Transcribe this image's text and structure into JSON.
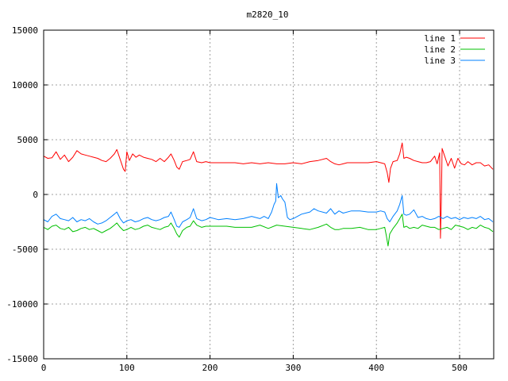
{
  "chart_data": {
    "type": "line",
    "title": "m2820_10",
    "xlabel": "",
    "ylabel": "",
    "xlim": [
      0,
      541
    ],
    "ylim": [
      -15000,
      15000
    ],
    "x_ticks": [
      0,
      100,
      200,
      300,
      400,
      500
    ],
    "y_ticks": [
      -15000,
      -10000,
      -5000,
      0,
      5000,
      10000,
      15000
    ],
    "x_tick_labels": [
      "0",
      "100",
      "200",
      "300",
      "400",
      "500"
    ],
    "y_tick_labels": [
      "-15000",
      "-10000",
      "-5000",
      "0",
      "5000",
      "10000",
      "15000"
    ],
    "grid": true,
    "legend_position": "top-right",
    "series": [
      {
        "name": "line 1",
        "color": "#ff0000",
        "points": [
          [
            0,
            3500
          ],
          [
            5,
            3300
          ],
          [
            10,
            3350
          ],
          [
            15,
            3900
          ],
          [
            20,
            3200
          ],
          [
            25,
            3600
          ],
          [
            30,
            3000
          ],
          [
            35,
            3400
          ],
          [
            40,
            4000
          ],
          [
            45,
            3700
          ],
          [
            50,
            3600
          ],
          [
            55,
            3500
          ],
          [
            60,
            3400
          ],
          [
            65,
            3300
          ],
          [
            70,
            3100
          ],
          [
            75,
            3000
          ],
          [
            80,
            3300
          ],
          [
            85,
            3700
          ],
          [
            88,
            4100
          ],
          [
            92,
            3200
          ],
          [
            96,
            2300
          ],
          [
            98,
            2100
          ],
          [
            100,
            3900
          ],
          [
            103,
            3100
          ],
          [
            107,
            3700
          ],
          [
            111,
            3400
          ],
          [
            115,
            3600
          ],
          [
            120,
            3400
          ],
          [
            125,
            3300
          ],
          [
            130,
            3200
          ],
          [
            135,
            3000
          ],
          [
            140,
            3300
          ],
          [
            145,
            3000
          ],
          [
            150,
            3400
          ],
          [
            153,
            3700
          ],
          [
            157,
            3100
          ],
          [
            160,
            2500
          ],
          [
            163,
            2300
          ],
          [
            167,
            3000
          ],
          [
            172,
            3100
          ],
          [
            176,
            3200
          ],
          [
            180,
            3900
          ],
          [
            184,
            3000
          ],
          [
            190,
            2900
          ],
          [
            195,
            3000
          ],
          [
            200,
            2900
          ],
          [
            210,
            2900
          ],
          [
            220,
            2900
          ],
          [
            230,
            2900
          ],
          [
            240,
            2800
          ],
          [
            250,
            2900
          ],
          [
            260,
            2800
          ],
          [
            270,
            2900
          ],
          [
            280,
            2800
          ],
          [
            290,
            2800
          ],
          [
            300,
            2900
          ],
          [
            310,
            2800
          ],
          [
            320,
            3000
          ],
          [
            330,
            3100
          ],
          [
            340,
            3300
          ],
          [
            345,
            3000
          ],
          [
            350,
            2800
          ],
          [
            355,
            2700
          ],
          [
            360,
            2800
          ],
          [
            365,
            2900
          ],
          [
            370,
            2900
          ],
          [
            380,
            2900
          ],
          [
            390,
            2900
          ],
          [
            400,
            3000
          ],
          [
            405,
            2900
          ],
          [
            410,
            2800
          ],
          [
            413,
            2000
          ],
          [
            415,
            1100
          ],
          [
            417,
            2400
          ],
          [
            420,
            3000
          ],
          [
            425,
            3100
          ],
          [
            428,
            3700
          ],
          [
            431,
            4700
          ],
          [
            433,
            3300
          ],
          [
            436,
            3400
          ],
          [
            440,
            3300
          ],
          [
            445,
            3100
          ],
          [
            450,
            3000
          ],
          [
            455,
            2900
          ],
          [
            460,
            2900
          ],
          [
            465,
            3000
          ],
          [
            470,
            3500
          ],
          [
            473,
            2800
          ],
          [
            476,
            3800
          ],
          [
            477,
            -4000
          ],
          [
            478,
            -700
          ],
          [
            479,
            4200
          ],
          [
            482,
            3500
          ],
          [
            486,
            2600
          ],
          [
            490,
            3300
          ],
          [
            494,
            2400
          ],
          [
            498,
            3300
          ],
          [
            502,
            2800
          ],
          [
            506,
            2700
          ],
          [
            510,
            3000
          ],
          [
            515,
            2700
          ],
          [
            520,
            2900
          ],
          [
            525,
            2900
          ],
          [
            530,
            2600
          ],
          [
            535,
            2700
          ],
          [
            540,
            2300
          ]
        ]
      },
      {
        "name": "line 2",
        "color": "#00c000",
        "points": [
          [
            0,
            -3000
          ],
          [
            5,
            -3200
          ],
          [
            10,
            -2900
          ],
          [
            15,
            -2800
          ],
          [
            20,
            -3100
          ],
          [
            25,
            -3200
          ],
          [
            30,
            -3000
          ],
          [
            35,
            -3400
          ],
          [
            40,
            -3300
          ],
          [
            45,
            -3100
          ],
          [
            50,
            -3000
          ],
          [
            55,
            -3200
          ],
          [
            60,
            -3100
          ],
          [
            65,
            -3300
          ],
          [
            70,
            -3500
          ],
          [
            75,
            -3300
          ],
          [
            80,
            -3100
          ],
          [
            85,
            -2800
          ],
          [
            88,
            -2600
          ],
          [
            92,
            -3000
          ],
          [
            96,
            -3300
          ],
          [
            100,
            -3200
          ],
          [
            105,
            -3000
          ],
          [
            110,
            -3200
          ],
          [
            115,
            -3100
          ],
          [
            120,
            -2900
          ],
          [
            125,
            -2800
          ],
          [
            130,
            -3000
          ],
          [
            135,
            -3100
          ],
          [
            140,
            -3200
          ],
          [
            145,
            -3000
          ],
          [
            150,
            -2900
          ],
          [
            153,
            -2600
          ],
          [
            157,
            -3100
          ],
          [
            160,
            -3600
          ],
          [
            163,
            -3900
          ],
          [
            167,
            -3300
          ],
          [
            172,
            -3000
          ],
          [
            176,
            -2900
          ],
          [
            180,
            -2400
          ],
          [
            184,
            -2800
          ],
          [
            190,
            -3000
          ],
          [
            195,
            -2900
          ],
          [
            200,
            -2900
          ],
          [
            210,
            -2900
          ],
          [
            220,
            -2900
          ],
          [
            230,
            -3000
          ],
          [
            240,
            -3000
          ],
          [
            250,
            -3000
          ],
          [
            260,
            -2800
          ],
          [
            270,
            -3100
          ],
          [
            280,
            -2800
          ],
          [
            290,
            -2900
          ],
          [
            300,
            -3000
          ],
          [
            310,
            -3100
          ],
          [
            320,
            -3200
          ],
          [
            330,
            -3000
          ],
          [
            340,
            -2700
          ],
          [
            345,
            -3000
          ],
          [
            350,
            -3200
          ],
          [
            355,
            -3200
          ],
          [
            360,
            -3100
          ],
          [
            370,
            -3100
          ],
          [
            380,
            -3000
          ],
          [
            390,
            -3200
          ],
          [
            400,
            -3200
          ],
          [
            405,
            -3100
          ],
          [
            410,
            -3000
          ],
          [
            412,
            -3800
          ],
          [
            414,
            -4700
          ],
          [
            416,
            -3600
          ],
          [
            420,
            -3100
          ],
          [
            425,
            -2600
          ],
          [
            428,
            -2200
          ],
          [
            431,
            -1800
          ],
          [
            433,
            -3000
          ],
          [
            436,
            -2900
          ],
          [
            440,
            -3100
          ],
          [
            445,
            -3000
          ],
          [
            450,
            -3100
          ],
          [
            455,
            -2800
          ],
          [
            460,
            -2900
          ],
          [
            465,
            -3000
          ],
          [
            470,
            -3000
          ],
          [
            475,
            -3200
          ],
          [
            480,
            -3100
          ],
          [
            485,
            -3000
          ],
          [
            490,
            -3200
          ],
          [
            495,
            -2800
          ],
          [
            500,
            -2900
          ],
          [
            505,
            -3000
          ],
          [
            510,
            -3200
          ],
          [
            515,
            -3000
          ],
          [
            520,
            -3100
          ],
          [
            525,
            -2800
          ],
          [
            530,
            -3000
          ],
          [
            535,
            -3100
          ],
          [
            540,
            -3400
          ]
        ]
      },
      {
        "name": "line 3",
        "color": "#0080ff",
        "points": [
          [
            0,
            -2300
          ],
          [
            5,
            -2500
          ],
          [
            10,
            -2000
          ],
          [
            15,
            -1800
          ],
          [
            20,
            -2200
          ],
          [
            25,
            -2300
          ],
          [
            30,
            -2400
          ],
          [
            35,
            -2100
          ],
          [
            40,
            -2500
          ],
          [
            45,
            -2300
          ],
          [
            50,
            -2400
          ],
          [
            55,
            -2200
          ],
          [
            60,
            -2500
          ],
          [
            65,
            -2700
          ],
          [
            70,
            -2600
          ],
          [
            75,
            -2400
          ],
          [
            80,
            -2100
          ],
          [
            85,
            -1800
          ],
          [
            88,
            -1600
          ],
          [
            92,
            -2200
          ],
          [
            96,
            -2600
          ],
          [
            100,
            -2400
          ],
          [
            105,
            -2300
          ],
          [
            110,
            -2500
          ],
          [
            115,
            -2400
          ],
          [
            120,
            -2200
          ],
          [
            125,
            -2100
          ],
          [
            130,
            -2300
          ],
          [
            135,
            -2400
          ],
          [
            140,
            -2300
          ],
          [
            145,
            -2100
          ],
          [
            150,
            -2000
          ],
          [
            153,
            -1600
          ],
          [
            157,
            -2300
          ],
          [
            160,
            -2900
          ],
          [
            163,
            -3000
          ],
          [
            167,
            -2500
          ],
          [
            172,
            -2300
          ],
          [
            176,
            -2100
          ],
          [
            180,
            -1300
          ],
          [
            184,
            -2200
          ],
          [
            190,
            -2400
          ],
          [
            195,
            -2300
          ],
          [
            200,
            -2100
          ],
          [
            210,
            -2300
          ],
          [
            220,
            -2200
          ],
          [
            230,
            -2300
          ],
          [
            240,
            -2200
          ],
          [
            250,
            -2000
          ],
          [
            260,
            -2200
          ],
          [
            265,
            -2000
          ],
          [
            270,
            -2200
          ],
          [
            274,
            -1600
          ],
          [
            277,
            -900
          ],
          [
            279,
            -600
          ],
          [
            280,
            1000
          ],
          [
            282,
            -300
          ],
          [
            285,
            -100
          ],
          [
            287,
            -400
          ],
          [
            290,
            -700
          ],
          [
            293,
            -2100
          ],
          [
            296,
            -2300
          ],
          [
            300,
            -2200
          ],
          [
            310,
            -1800
          ],
          [
            320,
            -1600
          ],
          [
            325,
            -1300
          ],
          [
            330,
            -1500
          ],
          [
            340,
            -1700
          ],
          [
            345,
            -1300
          ],
          [
            350,
            -1800
          ],
          [
            355,
            -1500
          ],
          [
            360,
            -1700
          ],
          [
            370,
            -1500
          ],
          [
            380,
            -1500
          ],
          [
            390,
            -1600
          ],
          [
            400,
            -1600
          ],
          [
            405,
            -1500
          ],
          [
            410,
            -1600
          ],
          [
            413,
            -2200
          ],
          [
            416,
            -2500
          ],
          [
            420,
            -2000
          ],
          [
            425,
            -1500
          ],
          [
            428,
            -900
          ],
          [
            431,
            -100
          ],
          [
            433,
            -1800
          ],
          [
            436,
            -1900
          ],
          [
            440,
            -1800
          ],
          [
            445,
            -1400
          ],
          [
            450,
            -2100
          ],
          [
            455,
            -2000
          ],
          [
            460,
            -2200
          ],
          [
            465,
            -2300
          ],
          [
            470,
            -2200
          ],
          [
            475,
            -2000
          ],
          [
            480,
            -2200
          ],
          [
            485,
            -2000
          ],
          [
            490,
            -2200
          ],
          [
            495,
            -2100
          ],
          [
            500,
            -2300
          ],
          [
            505,
            -2100
          ],
          [
            510,
            -2200
          ],
          [
            515,
            -2100
          ],
          [
            520,
            -2200
          ],
          [
            525,
            -2000
          ],
          [
            530,
            -2300
          ],
          [
            535,
            -2200
          ],
          [
            540,
            -2500
          ]
        ]
      }
    ]
  }
}
